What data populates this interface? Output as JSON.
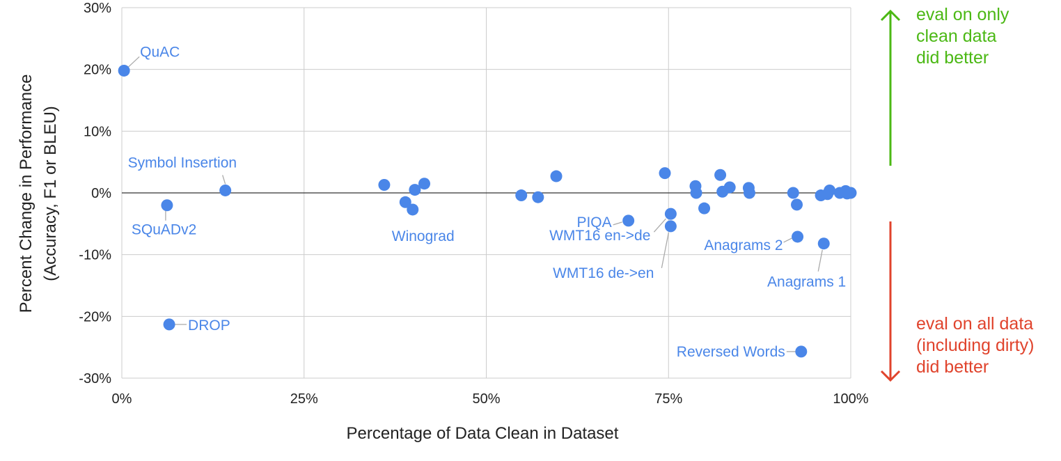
{
  "chart_data": {
    "type": "scatter",
    "title": "",
    "xlabel": "Percentage of Data Clean in Dataset",
    "ylabel_lines": [
      "Percent Change in Performance",
      "(Accuracy,  F1 or BLEU)"
    ],
    "xlim": [
      0,
      100
    ],
    "ylim": [
      -30,
      30
    ],
    "x_ticks": [
      {
        "value": 0,
        "label": "0%"
      },
      {
        "value": 25,
        "label": "25%"
      },
      {
        "value": 50,
        "label": "50%"
      },
      {
        "value": 75,
        "label": "75%"
      },
      {
        "value": 100,
        "label": "100%"
      }
    ],
    "y_ticks": [
      {
        "value": 30,
        "label": "30%"
      },
      {
        "value": 20,
        "label": "20%"
      },
      {
        "value": 10,
        "label": "10%"
      },
      {
        "value": 0,
        "label": "0%"
      },
      {
        "value": -10,
        "label": "-10%"
      },
      {
        "value": -20,
        "label": "-20%"
      },
      {
        "value": -30,
        "label": "-30%"
      }
    ],
    "grid": true,
    "point_color": "#4a86e8",
    "points": [
      {
        "x": 0.3,
        "y": 19.8,
        "label": "QuAC"
      },
      {
        "x": 14.2,
        "y": 0.4,
        "label": "Symbol Insertion"
      },
      {
        "x": 6.2,
        "y": -2.0,
        "label": "SQuADv2"
      },
      {
        "x": 6.5,
        "y": -21.3,
        "label": "DROP"
      },
      {
        "x": 36.0,
        "y": 1.3
      },
      {
        "x": 41.5,
        "y": 1.5
      },
      {
        "x": 40.2,
        "y": 0.5
      },
      {
        "x": 38.9,
        "y": -1.5
      },
      {
        "x": 39.9,
        "y": -2.7,
        "label": "Winograd"
      },
      {
        "x": 54.8,
        "y": -0.4
      },
      {
        "x": 57.1,
        "y": -0.7
      },
      {
        "x": 59.6,
        "y": 2.7
      },
      {
        "x": 69.5,
        "y": -4.5,
        "label": "PIQA"
      },
      {
        "x": 74.5,
        "y": 3.2
      },
      {
        "x": 75.3,
        "y": -3.4,
        "label": "WMT16 en->de"
      },
      {
        "x": 75.3,
        "y": -5.4,
        "label": "WMT16 de->en"
      },
      {
        "x": 78.7,
        "y": 1.1
      },
      {
        "x": 78.8,
        "y": 0.0
      },
      {
        "x": 79.9,
        "y": -2.5
      },
      {
        "x": 82.1,
        "y": 2.9
      },
      {
        "x": 82.4,
        "y": 0.2
      },
      {
        "x": 83.4,
        "y": 0.9
      },
      {
        "x": 86.0,
        "y": 0.8
      },
      {
        "x": 86.1,
        "y": 0.0
      },
      {
        "x": 92.1,
        "y": 0.0
      },
      {
        "x": 92.6,
        "y": -1.9
      },
      {
        "x": 92.7,
        "y": -7.1,
        "label": "Anagrams 2"
      },
      {
        "x": 93.2,
        "y": -25.7,
        "label": "Reversed Words"
      },
      {
        "x": 96.3,
        "y": -8.2,
        "label": "Anagrams 1"
      },
      {
        "x": 95.9,
        "y": -0.4
      },
      {
        "x": 96.8,
        "y": -0.2
      },
      {
        "x": 97.1,
        "y": 0.4
      },
      {
        "x": 98.5,
        "y": 0.0
      },
      {
        "x": 99.3,
        "y": 0.3
      },
      {
        "x": 99.5,
        "y": -0.1
      },
      {
        "x": 100.0,
        "y": 0.0
      }
    ],
    "annotations": {
      "up": {
        "lines": [
          "eval on only",
          "clean data",
          "did better"
        ],
        "color": "#4bb814"
      },
      "down": {
        "lines": [
          "eval on all data",
          "(including dirty)",
          "did better"
        ],
        "color": "#e0432c"
      }
    }
  }
}
